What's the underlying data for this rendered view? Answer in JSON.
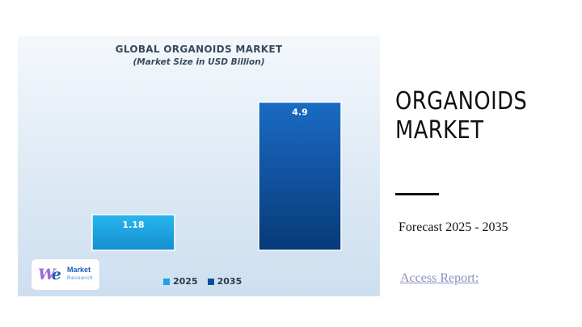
{
  "side": {
    "title_line1": "ORGANOIDS",
    "title_line2": "MARKET",
    "forecast": "Forecast 2025 - 2035",
    "access_link": "Access Report:"
  },
  "logo": {
    "mark_w": "W",
    "mark_e": "e",
    "line1": "Market",
    "line2": "Research"
  },
  "colors": {
    "bar_2025": "#1fa2e0",
    "bar_2035": "#0a4f9e",
    "title_text": "#3a4a5a",
    "link": "#8a8dc0"
  },
  "chart_data": {
    "type": "bar",
    "title": "GLOBAL ORGANOIDS MARKET",
    "subtitle": "(Market Size in USD Billion)",
    "categories": [
      "2025",
      "2035"
    ],
    "series": [
      {
        "name": "2025",
        "values": [
          1.18,
          null
        ]
      },
      {
        "name": "2035",
        "values": [
          null,
          4.9
        ]
      }
    ],
    "values": [
      1.18,
      4.9
    ],
    "data_labels": [
      "1.18",
      "4.9"
    ],
    "ylim": [
      0,
      5.5
    ],
    "grid": false,
    "legend": "bottom-center",
    "xlabel": "",
    "ylabel": ""
  }
}
